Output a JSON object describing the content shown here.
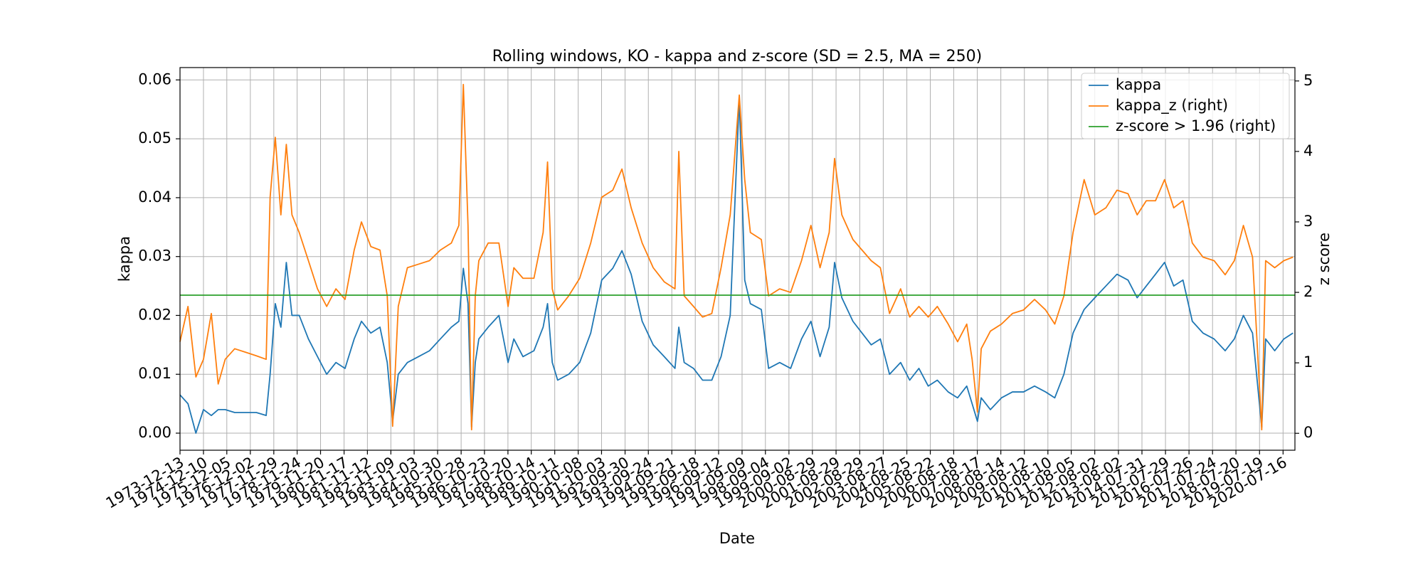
{
  "chart_data": {
    "type": "line",
    "title": "Rolling windows, KO - kappa and z-score (SD = 2.5, MA = 250)",
    "xlabel": "Date",
    "ylabel": "kappa",
    "y2label": "z score",
    "x": [
      "1973-12-13",
      "1974-04-15",
      "1974-08-15",
      "1974-12-10",
      "1975-04-10",
      "1975-07-25",
      "1975-11-10",
      "1976-04-05",
      "1976-09-20",
      "1977-03-05",
      "1977-08-03",
      "1977-10-03",
      "1977-12-22",
      "1978-03-18",
      "1978-06-10",
      "1978-09-05",
      "1978-12-26",
      "1979-05-17",
      "1979-10-04",
      "1980-02-23",
      "1980-07-14",
      "1980-12-02",
      "1981-04-22",
      "1981-08-12",
      "1982-01-04",
      "1982-05-25",
      "1982-09-14",
      "1982-12-06",
      "1983-03-03",
      "1983-07-22",
      "1984-01-09",
      "1984-06-27",
      "1984-12-11",
      "1985-05-30",
      "1985-09-23",
      "1985-12-01",
      "1986-02-11",
      "1986-04-07",
      "1986-06-03",
      "1986-07-28",
      "1986-12-19",
      "1987-06-03",
      "1987-10-22",
      "1988-01-19",
      "1988-06-08",
      "1988-11-24",
      "1989-04-15",
      "1989-06-22",
      "1989-09-03",
      "1989-11-25",
      "1990-05-14",
      "1990-10-31",
      "1991-04-19",
      "1991-10-06",
      "1992-03-24",
      "1992-08-13",
      "1993-01-02",
      "1993-06-21",
      "1993-12-08",
      "1994-05-27",
      "1994-11-09",
      "1995-01-07",
      "1995-03-31",
      "1995-08-22",
      "1996-01-09",
      "1996-05-30",
      "1996-10-20",
      "1997-03-10",
      "1997-07-28",
      "1997-10-20",
      "1998-01-15",
      "1998-07-03",
      "1998-10-23",
      "1999-04-12",
      "1999-09-28",
      "2000-03-14",
      "2000-08-06",
      "2000-12-25",
      "2001-05-15",
      "2001-08-06",
      "2001-11-26",
      "2002-05-16",
      "2002-10-04",
      "2003-02-22",
      "2003-07-13",
      "2003-12-02",
      "2004-05-21",
      "2004-10-08",
      "2005-02-27",
      "2005-07-21",
      "2005-12-08",
      "2006-05-25",
      "2006-10-17",
      "2007-03-07",
      "2007-05-29",
      "2007-08-19",
      "2007-10-16",
      "2008-03-06",
      "2008-08-24",
      "2009-02-09",
      "2009-07-30",
      "2010-01-16",
      "2010-07-06",
      "2010-11-24",
      "2011-04-14",
      "2011-09-02",
      "2012-02-20",
      "2012-08-03",
      "2013-01-21",
      "2013-07-11",
      "2013-12-28",
      "2014-05-18",
      "2014-10-06",
      "2015-02-25",
      "2015-07-15",
      "2015-12-03",
      "2016-04-24",
      "2016-09-15",
      "2017-02-27",
      "2017-08-17",
      "2018-02-04",
      "2018-06-25",
      "2018-11-12",
      "2019-04-02",
      "2019-08-22",
      "2019-10-21",
      "2020-03-09",
      "2020-07-28",
      "2020-12-16"
    ],
    "series": [
      {
        "name": "kappa",
        "color": "#1f77b4",
        "axis": "y",
        "values": [
          0.0065,
          0.005,
          0.0,
          0.004,
          0.003,
          0.004,
          0.004,
          0.0035,
          0.0035,
          0.0035,
          0.003,
          0.01,
          0.022,
          0.018,
          0.029,
          0.02,
          0.02,
          0.016,
          0.013,
          0.01,
          0.012,
          0.011,
          0.016,
          0.019,
          0.017,
          0.018,
          0.012,
          0.002,
          0.01,
          0.012,
          0.013,
          0.014,
          0.016,
          0.018,
          0.019,
          0.028,
          0.022,
          0.001,
          0.012,
          0.016,
          0.018,
          0.02,
          0.012,
          0.016,
          0.013,
          0.014,
          0.018,
          0.022,
          0.012,
          0.009,
          0.01,
          0.012,
          0.017,
          0.026,
          0.028,
          0.031,
          0.027,
          0.019,
          0.015,
          0.013,
          0.011,
          0.018,
          0.012,
          0.011,
          0.009,
          0.009,
          0.013,
          0.02,
          0.057,
          0.026,
          0.022,
          0.021,
          0.011,
          0.012,
          0.011,
          0.016,
          0.019,
          0.013,
          0.018,
          0.029,
          0.023,
          0.019,
          0.017,
          0.015,
          0.016,
          0.01,
          0.012,
          0.009,
          0.011,
          0.008,
          0.009,
          0.007,
          0.006,
          0.008,
          0.005,
          0.002,
          0.006,
          0.004,
          0.006,
          0.007,
          0.007,
          0.008,
          0.007,
          0.006,
          0.01,
          0.017,
          0.021,
          0.023,
          0.025,
          0.027,
          0.026,
          0.023,
          0.025,
          0.027,
          0.029,
          0.025,
          0.026,
          0.019,
          0.017,
          0.016,
          0.014,
          0.016,
          0.02,
          0.017,
          0.001,
          0.016,
          0.014,
          0.016,
          0.017
        ]
      },
      {
        "name": "kappa_z (right)",
        "color": "#ff7f0e",
        "axis": "y2",
        "values": [
          1.3,
          1.8,
          0.8,
          1.05,
          1.7,
          0.7,
          1.05,
          1.2,
          1.15,
          1.1,
          1.05,
          3.35,
          4.2,
          3.1,
          4.1,
          3.1,
          2.85,
          2.45,
          2.05,
          1.8,
          2.05,
          1.9,
          2.6,
          3.0,
          2.65,
          2.6,
          1.95,
          0.1,
          1.8,
          2.35,
          2.4,
          2.45,
          2.6,
          2.7,
          2.95,
          4.95,
          2.95,
          0.05,
          1.95,
          2.45,
          2.7,
          2.7,
          1.8,
          2.35,
          2.2,
          2.2,
          2.85,
          3.85,
          2.05,
          1.75,
          1.95,
          2.2,
          2.7,
          3.35,
          3.45,
          3.75,
          3.2,
          2.7,
          2.35,
          2.15,
          2.05,
          4.0,
          1.95,
          1.8,
          1.65,
          1.7,
          2.35,
          3.1,
          4.8,
          3.6,
          2.85,
          2.75,
          1.95,
          2.05,
          2.0,
          2.45,
          2.95,
          2.35,
          2.85,
          3.9,
          3.1,
          2.75,
          2.6,
          2.45,
          2.35,
          1.7,
          2.05,
          1.65,
          1.8,
          1.65,
          1.8,
          1.55,
          1.3,
          1.55,
          1.05,
          0.3,
          1.2,
          1.45,
          1.55,
          1.7,
          1.75,
          1.9,
          1.75,
          1.55,
          1.95,
          2.85,
          3.6,
          3.1,
          3.2,
          3.45,
          3.4,
          3.1,
          3.3,
          3.3,
          3.6,
          3.2,
          3.3,
          2.7,
          2.5,
          2.45,
          2.25,
          2.45,
          2.95,
          2.5,
          0.05,
          2.45,
          2.35,
          2.45,
          2.5
        ]
      },
      {
        "name": "z-score > 1.96 (right)",
        "color": "#2ca02c",
        "axis": "y2",
        "x": [
          "1973-12-13",
          "2021-01-15"
        ],
        "values": [
          1.96,
          1.96
        ]
      }
    ],
    "xlim": [
      "1973-12-13",
      "2021-01-15"
    ],
    "xticks": [
      "1973-12-13",
      "1974-12-10",
      "1975-12-05",
      "1976-12-02",
      "1977-11-29",
      "1978-11-24",
      "1979-11-20",
      "1980-11-17",
      "1981-11-12",
      "1982-11-09",
      "1983-11-03",
      "1984-10-30",
      "1985-10-28",
      "1986-10-23",
      "1987-10-20",
      "1988-10-14",
      "1989-10-11",
      "1990-10-08",
      "1991-10-03",
      "1992-09-30",
      "1993-09-24",
      "1994-09-21",
      "1995-09-18",
      "1996-09-12",
      "1997-09-09",
      "1998-09-04",
      "1999-09-02",
      "2000-08-29",
      "2001-08-29",
      "2002-08-29",
      "2003-08-27",
      "2004-08-25",
      "2005-08-22",
      "2006-08-18",
      "2007-08-17",
      "2008-08-14",
      "2009-08-12",
      "2010-08-10",
      "2011-08-05",
      "2012-08-02",
      "2013-08-02",
      "2014-07-31",
      "2015-07-29",
      "2016-07-26",
      "2017-07-24",
      "2018-07-20",
      "2019-07-19",
      "2020-07-16"
    ],
    "ylim": [
      -0.0029,
      0.0621
    ],
    "yticks": [
      {
        "value": 0,
        "label": "0.00"
      },
      {
        "value": 0.01,
        "label": "0.01"
      },
      {
        "value": 0.02,
        "label": "0.02"
      },
      {
        "value": 0.03,
        "label": "0.03"
      },
      {
        "value": 0.04,
        "label": "0.04"
      },
      {
        "value": 0.05,
        "label": "0.05"
      },
      {
        "value": 0.06,
        "label": "0.06"
      }
    ],
    "y2lim": [
      -0.24,
      5.19
    ],
    "y2ticks": [
      0,
      1,
      2,
      3,
      4,
      5
    ],
    "grid": true,
    "legend": "upper right"
  }
}
